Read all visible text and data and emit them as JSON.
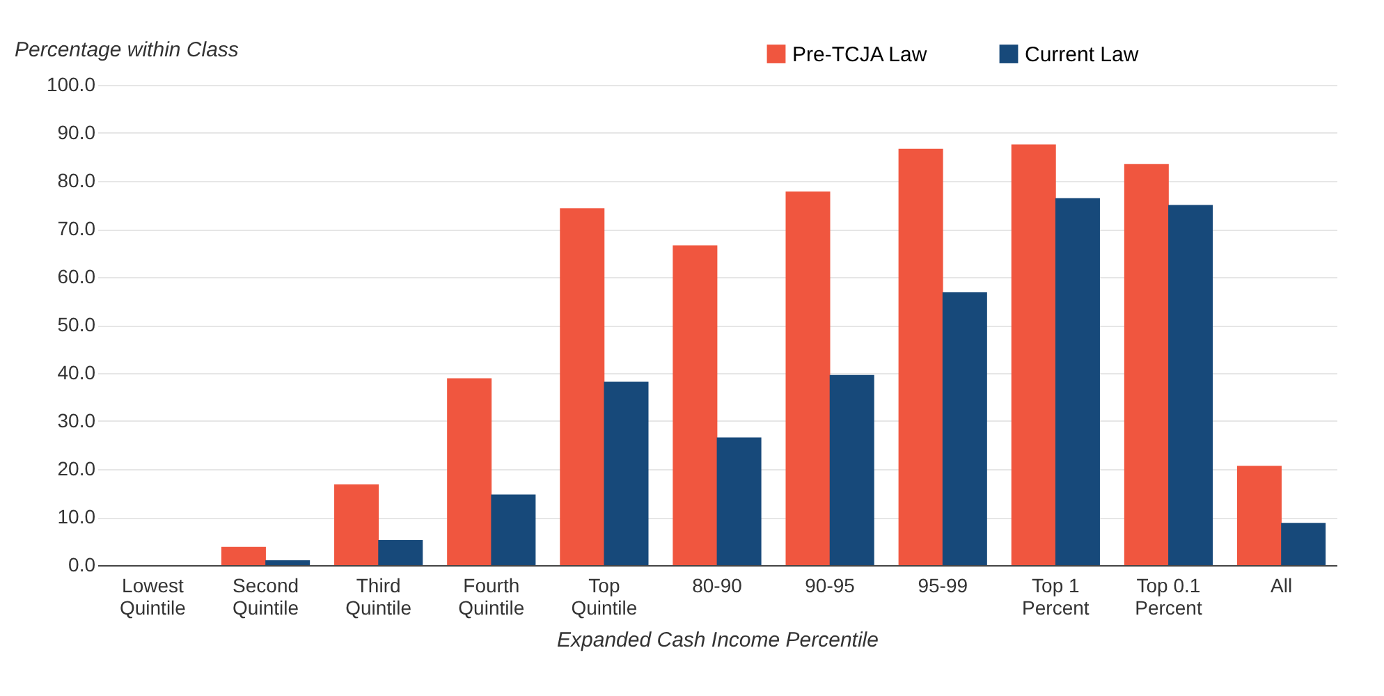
{
  "chart_data": {
    "type": "bar",
    "ylabel": "Percentage within Class",
    "xlabel": "Expanded Cash Income Percentile",
    "categories": [
      "Lowest Quintile",
      "Second Quintile",
      "Third Quintile",
      "Fourth Quintile",
      "Top Quintile",
      "80-90",
      "90-95",
      "95-99",
      "Top 1 Percent",
      "Top 0.1 Percent",
      "All"
    ],
    "series": [
      {
        "name": "Pre-TCJA Law",
        "color": "#f0563f",
        "values": [
          0,
          3.8,
          16.8,
          38.9,
          74.3,
          66.6,
          77.8,
          86.7,
          87.6,
          83.5,
          20.7
        ]
      },
      {
        "name": "Current Law",
        "color": "#17497a",
        "values": [
          0,
          1.0,
          5.2,
          14.7,
          38.2,
          26.6,
          39.6,
          56.8,
          76.4,
          75.0,
          8.8
        ]
      }
    ],
    "ylim": [
      0,
      100
    ],
    "yticks": [
      {
        "value": 0,
        "label": "0.0"
      },
      {
        "value": 10,
        "label": "10.0"
      },
      {
        "value": 20,
        "label": "20.0"
      },
      {
        "value": 30,
        "label": "30.0"
      },
      {
        "value": 40,
        "label": "40.0"
      },
      {
        "value": 50,
        "label": "50.0"
      },
      {
        "value": 60,
        "label": "60.0"
      },
      {
        "value": 70,
        "label": "70.0"
      },
      {
        "value": 80,
        "label": "80.0"
      },
      {
        "value": 90,
        "label": "90.0"
      },
      {
        "value": 100,
        "label": "100.0"
      }
    ],
    "grid": "y",
    "legend": "top right"
  }
}
